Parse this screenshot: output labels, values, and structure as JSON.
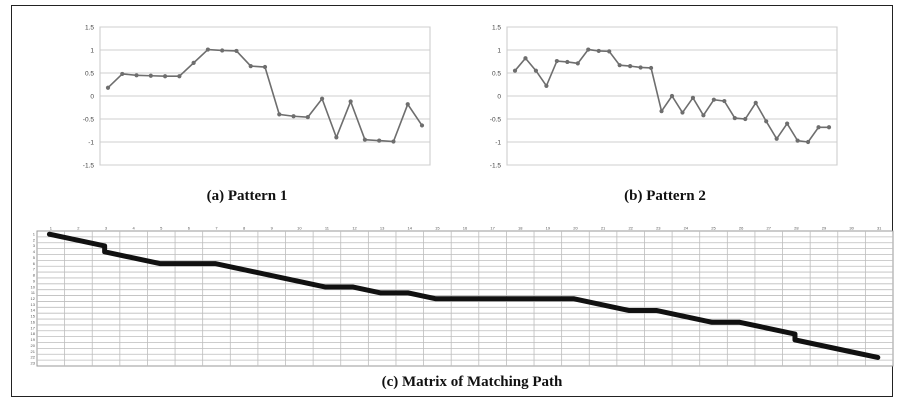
{
  "chart_data": [
    {
      "type": "line",
      "caption": "(a) Pattern 1",
      "ylim": [
        -1.5,
        1.5
      ],
      "yticks": [
        "1.5",
        "1",
        "0.5",
        "0",
        "-0.5",
        "-1",
        "-1.5"
      ],
      "grid": true,
      "series": [
        {
          "values": [
            0.18,
            0.48,
            0.45,
            0.44,
            0.43,
            0.43,
            0.72,
            1.01,
            0.99,
            0.98,
            0.65,
            0.63,
            -0.4,
            -0.44,
            -0.46,
            -0.06,
            -0.9,
            -0.12,
            -0.95,
            -0.97,
            -0.99,
            -0.18,
            -0.64
          ]
        }
      ],
      "color": "#6e6e6e"
    },
    {
      "type": "line",
      "caption": "(b) Pattern 2",
      "ylim": [
        -1.5,
        1.5
      ],
      "yticks": [
        "1.5",
        "1",
        "0.5",
        "0",
        "-0.5",
        "-1",
        "-1.5"
      ],
      "grid": true,
      "series": [
        {
          "values": [
            0.55,
            0.82,
            0.55,
            0.22,
            0.76,
            0.74,
            0.71,
            1.01,
            0.98,
            0.97,
            0.67,
            0.65,
            0.62,
            0.61,
            -0.33,
            0.0,
            -0.36,
            -0.04,
            -0.42,
            -0.08,
            -0.11,
            -0.48,
            -0.5,
            -0.15,
            -0.55,
            -0.93,
            -0.6,
            -0.97,
            -1.0,
            -0.68,
            -0.68
          ]
        }
      ],
      "color": "#6e6e6e"
    },
    {
      "type": "heatmap",
      "caption": "(c) Matrix of Matching Path",
      "columns": [
        "1",
        "2",
        "3",
        "4",
        "5",
        "6",
        "7",
        "8",
        "9",
        "10",
        "11",
        "12",
        "13",
        "14",
        "15",
        "16",
        "17",
        "18",
        "19",
        "20",
        "21",
        "22",
        "23",
        "24",
        "25",
        "26",
        "27",
        "28",
        "29",
        "30",
        "31"
      ],
      "rows": [
        "1",
        "2",
        "3",
        "4",
        "5",
        "6",
        "7",
        "8",
        "9",
        "10",
        "11",
        "12",
        "13",
        "14",
        "15",
        "16",
        "17",
        "18",
        "19",
        "20",
        "21",
        "22",
        "23"
      ],
      "grid": true,
      "path": [
        [
          1,
          1
        ],
        [
          2,
          2
        ],
        [
          3,
          3
        ],
        [
          3,
          4
        ],
        [
          4,
          5
        ],
        [
          5,
          6
        ],
        [
          6,
          6
        ],
        [
          7,
          6
        ],
        [
          8,
          7
        ],
        [
          9,
          8
        ],
        [
          10,
          9
        ],
        [
          11,
          10
        ],
        [
          12,
          10
        ],
        [
          13,
          11
        ],
        [
          14,
          11
        ],
        [
          15,
          12
        ],
        [
          16,
          12
        ],
        [
          17,
          12
        ],
        [
          18,
          12
        ],
        [
          19,
          12
        ],
        [
          20,
          12
        ],
        [
          21,
          13
        ],
        [
          22,
          14
        ],
        [
          23,
          14
        ],
        [
          24,
          15
        ],
        [
          25,
          16
        ],
        [
          26,
          16
        ],
        [
          27,
          17
        ],
        [
          28,
          18
        ],
        [
          28,
          19
        ],
        [
          29,
          20
        ],
        [
          30,
          21
        ],
        [
          31,
          22
        ]
      ],
      "path_color": "#111111"
    }
  ]
}
